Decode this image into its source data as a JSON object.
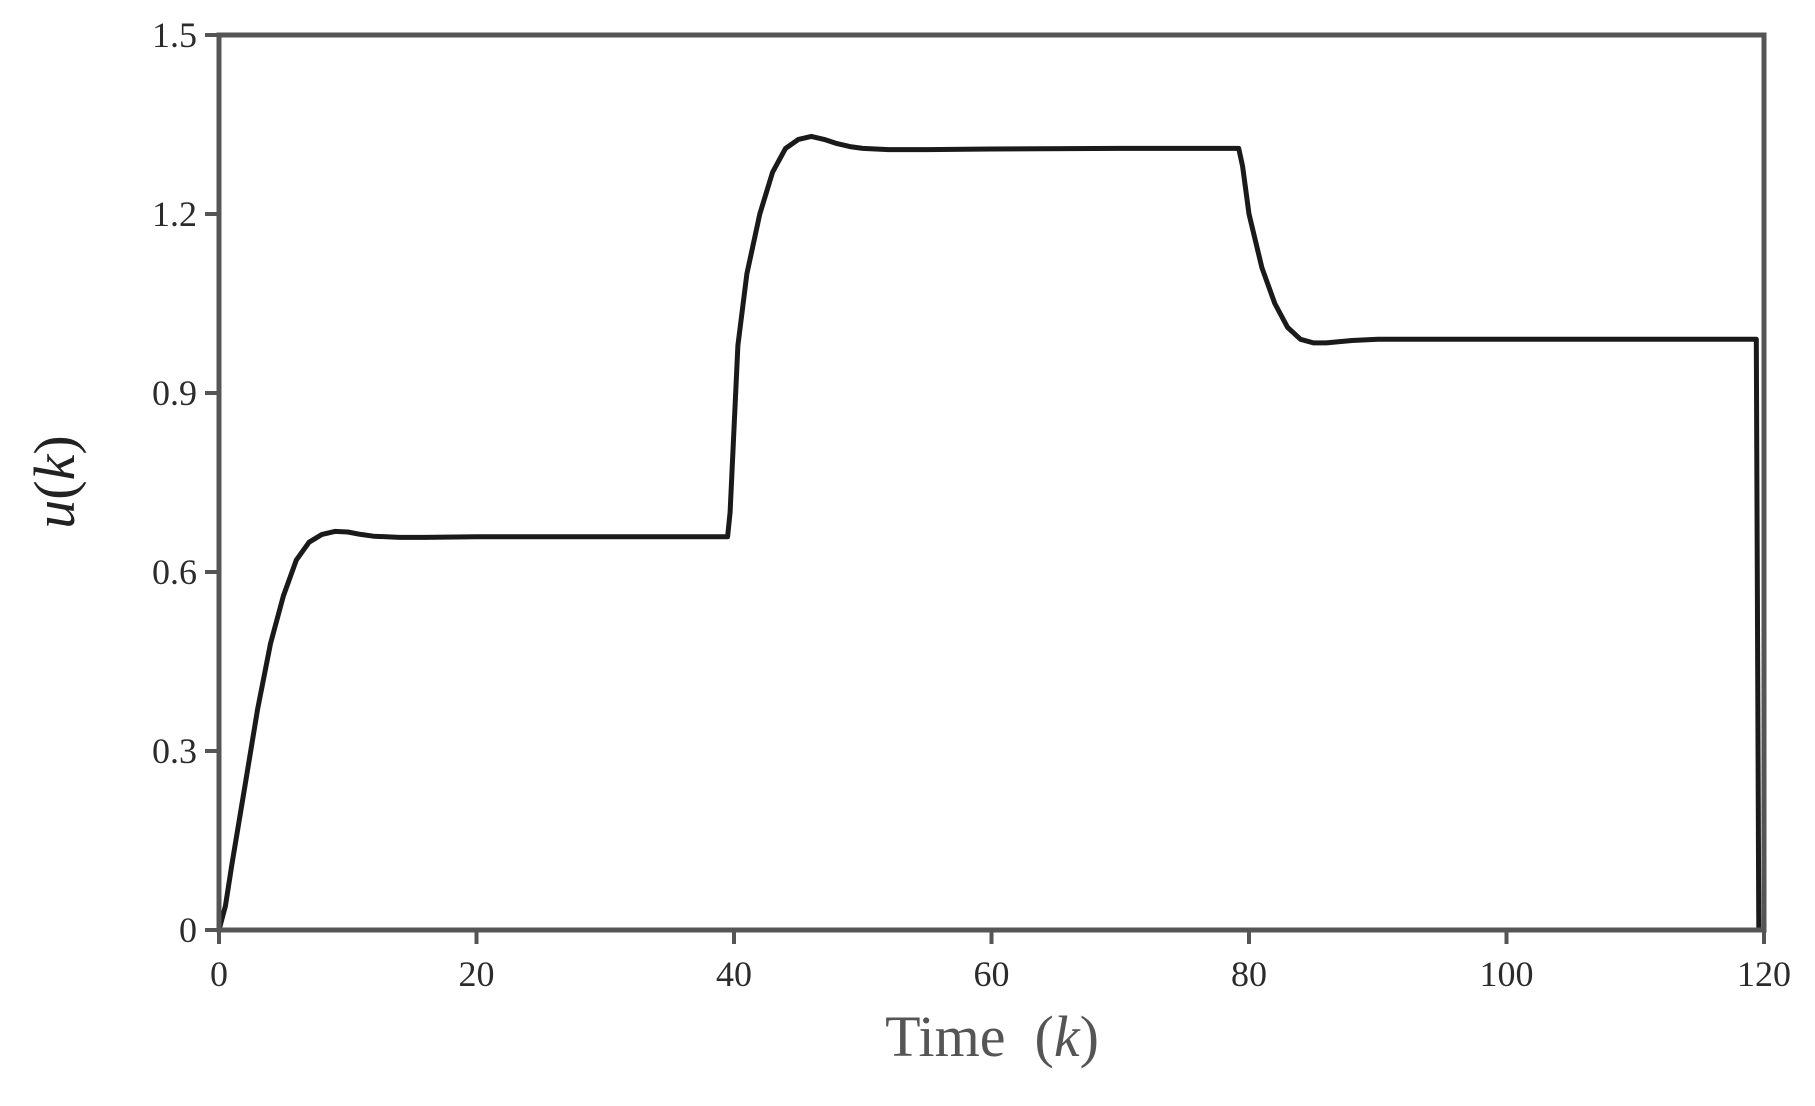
{
  "chart_data": {
    "type": "line",
    "title": "",
    "xlabel_text": "Time",
    "xlabel_var": "k",
    "ylabel_var": "u",
    "ylabel_arg": "k",
    "xlim": [
      0,
      120
    ],
    "ylim": [
      0,
      1.5
    ],
    "xticks": [
      "0",
      "20",
      "40",
      "60",
      "80",
      "100",
      "120"
    ],
    "yticks": [
      "0",
      "0.3",
      "0.6",
      "0.9",
      "1.2",
      "1.5"
    ],
    "grid": false,
    "legend": "none",
    "series": [
      {
        "color": "#1a1a1a",
        "x": [
          0,
          0.5,
          1,
          2,
          3,
          4,
          5,
          6,
          7,
          8,
          9,
          10,
          11,
          12,
          14,
          16,
          20,
          30,
          39.5,
          39.7,
          40.3,
          41,
          42,
          43,
          44,
          45,
          46,
          47,
          48,
          49,
          50,
          52,
          55,
          60,
          70,
          79.2,
          79.5,
          80,
          81,
          82,
          83,
          84,
          85,
          86,
          88,
          90,
          100,
          110,
          119.4,
          119.6
        ],
        "y": [
          0,
          0.04,
          0.11,
          0.24,
          0.37,
          0.48,
          0.56,
          0.62,
          0.65,
          0.663,
          0.668,
          0.667,
          0.663,
          0.66,
          0.658,
          0.658,
          0.659,
          0.659,
          0.659,
          0.7,
          0.98,
          1.1,
          1.2,
          1.27,
          1.31,
          1.325,
          1.33,
          1.325,
          1.318,
          1.313,
          1.31,
          1.308,
          1.308,
          1.309,
          1.31,
          1.31,
          1.28,
          1.2,
          1.11,
          1.05,
          1.01,
          0.99,
          0.984,
          0.984,
          0.988,
          0.99,
          0.99,
          0.99,
          0.99,
          0
        ]
      }
    ]
  }
}
